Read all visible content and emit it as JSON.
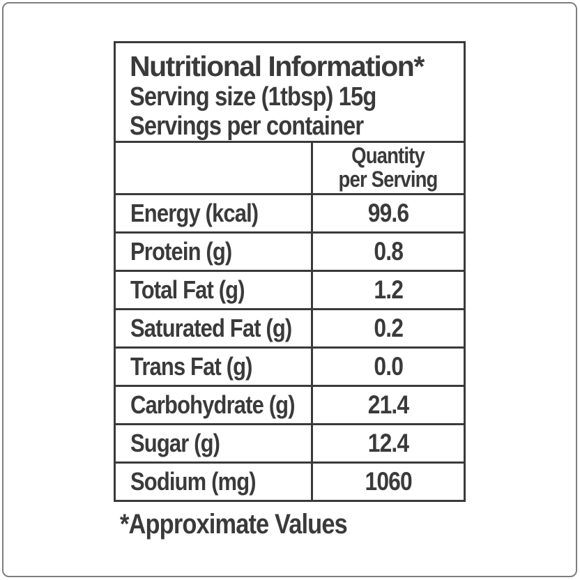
{
  "header": {
    "title": "Nutritional Information*",
    "serving_size": "Serving size (1tbsp) 15g",
    "servings_per_container": "Servings per container"
  },
  "table": {
    "column_header": {
      "line1": "Quantity",
      "line2": "per Serving"
    },
    "rows": [
      {
        "label": "Energy (kcal)",
        "value": "99.6"
      },
      {
        "label": "Protein (g)",
        "value": "0.8"
      },
      {
        "label": "Total Fat (g)",
        "value": "1.2"
      },
      {
        "label": "Saturated Fat (g)",
        "value": "0.2"
      },
      {
        "label": "Trans Fat (g)",
        "value": "0.0"
      },
      {
        "label": "Carbohydrate (g)",
        "value": "21.4"
      },
      {
        "label": "Sugar (g)",
        "value": "12.4"
      },
      {
        "label": "Sodium (mg)",
        "value": "1060"
      }
    ]
  },
  "footer": {
    "note": "*Approximate Values"
  },
  "colors": {
    "text": "#3a3a3a",
    "table_border": "#3a3a3a",
    "frame_border": "#7e7e7e",
    "background": "#ffffff"
  }
}
